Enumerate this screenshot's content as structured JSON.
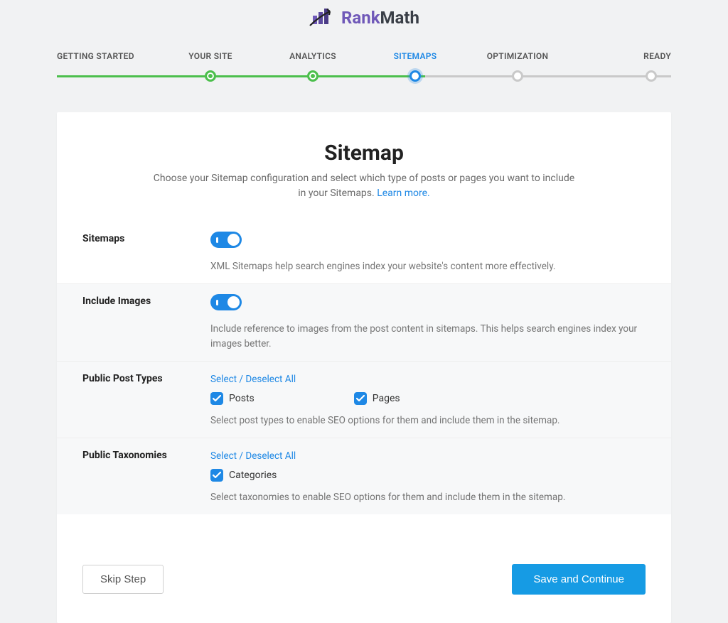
{
  "brand": {
    "rank": "Rank",
    "math": "Math"
  },
  "colors": {
    "accent_blue": "#1e88e5",
    "step_green": "#4cbf4c",
    "step_gray": "#c9c9c9",
    "toggle_on": "#1e88e5",
    "checkbox_on": "#1e88e5",
    "primary_btn": "#169be4",
    "logo_purple": "#6f58b8",
    "logo_dark": "#393e46"
  },
  "stepper": {
    "items": [
      {
        "label": "GETTING STARTED",
        "state": "done"
      },
      {
        "label": "YOUR SITE",
        "state": "done"
      },
      {
        "label": "ANALYTICS",
        "state": "done"
      },
      {
        "label": "SITEMAPS",
        "state": "active"
      },
      {
        "label": "OPTIMIZATION",
        "state": "todo"
      },
      {
        "label": "READY",
        "state": "todo"
      }
    ]
  },
  "hero": {
    "title": "Sitemap",
    "description": "Choose your Sitemap configuration and select which type of posts or pages you want to include in your Sitemaps. ",
    "link_text": "Learn more."
  },
  "sections": {
    "sitemaps": {
      "label": "Sitemaps",
      "enabled": true,
      "help": "XML Sitemaps help search engines index your website's content more effectively."
    },
    "images": {
      "label": "Include Images",
      "enabled": true,
      "help": "Include reference to images from the post content in sitemaps. This helps search engines index your images better."
    },
    "post_types": {
      "label": "Public Post Types",
      "select_all": "Select / Deselect All",
      "options": [
        {
          "label": "Posts",
          "checked": true
        },
        {
          "label": "Pages",
          "checked": true
        }
      ],
      "help": "Select post types to enable SEO options for them and include them in the sitemap."
    },
    "taxonomies": {
      "label": "Public Taxonomies",
      "select_all": "Select / Deselect All",
      "options": [
        {
          "label": "Categories",
          "checked": true
        }
      ],
      "help": "Select taxonomies to enable SEO options for them and include them in the sitemap."
    }
  },
  "footer": {
    "skip": "Skip Step",
    "continue": "Save and Continue"
  }
}
